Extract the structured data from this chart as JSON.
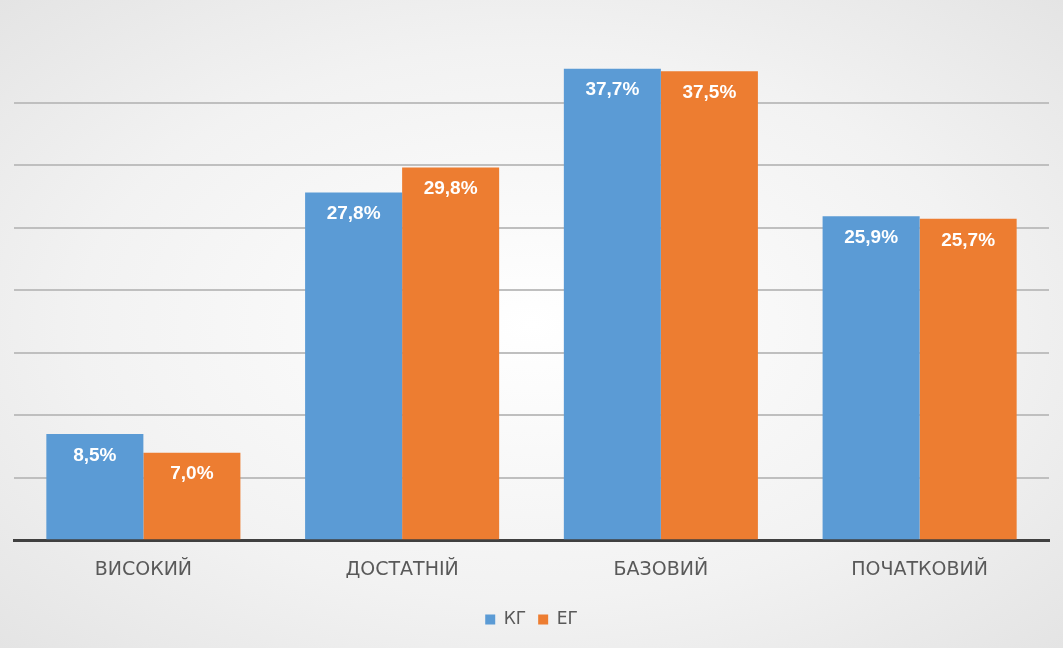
{
  "chart_data": {
    "type": "bar",
    "categories": [
      "ВИСОКИЙ",
      "ДОСТАТНІЙ",
      "БАЗОВИЙ",
      "ПОЧАТКОВИЙ"
    ],
    "series": [
      {
        "name": "КГ",
        "color": "#5b9bd5",
        "values": [
          8.5,
          27.8,
          37.7,
          25.9
        ],
        "value_labels": [
          "8,5%",
          "27,8%",
          "37,7%",
          "25,9%"
        ]
      },
      {
        "name": "ЕГ",
        "color": "#ed7d31",
        "values": [
          7.0,
          29.8,
          37.5,
          25.7
        ],
        "value_labels": [
          "7,0%",
          "29,8%",
          "37,5%",
          "25,7%"
        ]
      }
    ],
    "yticks": [
      {
        "value": 0,
        "label": null
      },
      {
        "value": 5,
        "label": null
      },
      {
        "value": 10,
        "label": null
      },
      {
        "value": 15,
        "label": null
      },
      {
        "value": 20,
        "label": null
      },
      {
        "value": 25,
        "label": null
      },
      {
        "value": 30,
        "label": null
      },
      {
        "value": 35,
        "label": null
      }
    ],
    "tick_labels": "x",
    "grid": "y",
    "legend": "bottom"
  }
}
